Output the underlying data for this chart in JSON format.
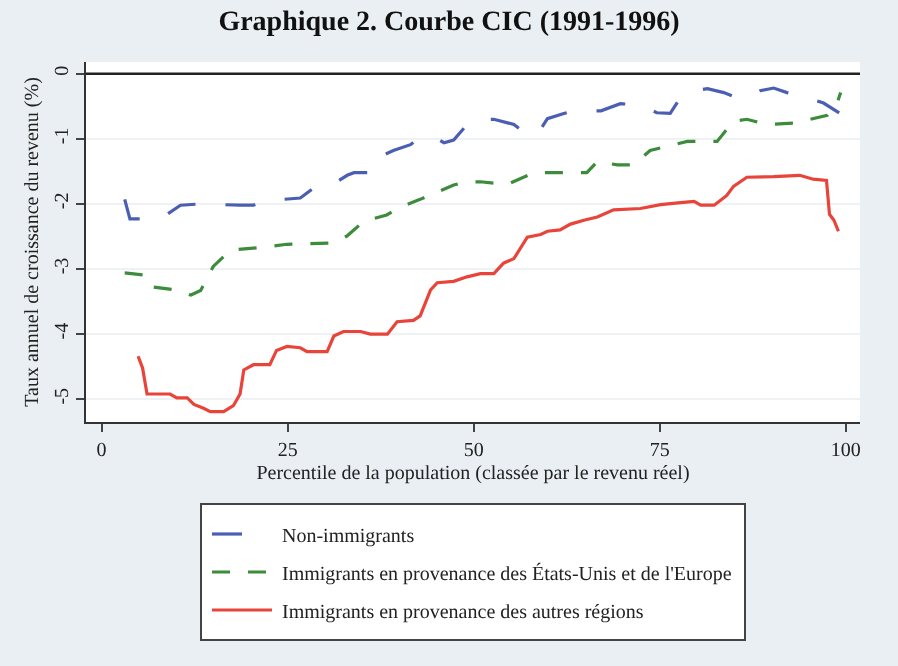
{
  "chart_data": {
    "type": "line",
    "title": "Graphique 2. Courbe CIC (1991-1996)",
    "xlabel": "Percentile de la population (classée par le revenu réel)",
    "ylabel": "Taux annuel de croissance du revenu (%)",
    "xlim": [
      -2.1,
      101.9
    ],
    "xticks": [
      0,
      25,
      50,
      75,
      100
    ],
    "ylim": [
      -5.35,
      0.18
    ],
    "yticks": [
      -5,
      -4,
      -3,
      -2,
      -1,
      0
    ],
    "grid": "y",
    "legend": "bottom",
    "marker": "none",
    "ref_lines": [
      {
        "axis": "y",
        "value": 0,
        "color": "#222222",
        "line_style": "solid"
      }
    ],
    "series": [
      {
        "name": "Non-immigrants",
        "color": "#4a5fb3",
        "line_style": "dashed",
        "x": [
          3.1,
          3.8,
          7.9,
          10.6,
          13.3,
          18.6,
          20.4,
          22.2,
          26.7,
          29,
          31.2,
          33,
          33.9,
          36.6,
          37.5,
          39.2,
          41.5,
          42.8,
          44.6,
          46,
          47.3,
          49.1,
          50,
          52.7,
          55.4,
          57.2,
          58.5,
          59.9,
          62.1,
          63.5,
          67.1,
          69.7,
          72.4,
          74.6,
          76.4,
          77.8,
          79.6,
          81.4,
          83.6,
          85.4,
          87.2,
          88.5,
          90.3,
          92.1,
          94.8,
          97,
          99.1
        ],
        "values": [
          -1.93,
          -2.23,
          -2.23,
          -2.02,
          -2.0,
          -2.02,
          -2.02,
          -1.95,
          -1.91,
          -1.71,
          -1.69,
          -1.56,
          -1.52,
          -1.52,
          -1.27,
          -1.18,
          -1.09,
          -0.97,
          -0.97,
          -1.06,
          -1.02,
          -0.78,
          -0.71,
          -0.7,
          -0.78,
          -0.94,
          -0.94,
          -0.69,
          -0.61,
          -0.57,
          -0.57,
          -0.46,
          -0.48,
          -0.6,
          -0.61,
          -0.36,
          -0.26,
          -0.23,
          -0.29,
          -0.37,
          -0.36,
          -0.26,
          -0.22,
          -0.29,
          -0.37,
          -0.45,
          -0.6
        ]
      },
      {
        "name": "Immigrants en provenance des États-Unis et de l'Europe",
        "color": "#3c8c3c",
        "line_style": "dotted",
        "x": [
          3.1,
          5.6,
          6.5,
          9.8,
          12,
          13.3,
          15,
          17.3,
          21.3,
          24.9,
          31.1,
          33,
          35.2,
          38.3,
          40.1,
          42.8,
          45.5,
          47.3,
          49.1,
          50.9,
          54.5,
          58.1,
          63.4,
          65.2,
          66.6,
          69.3,
          71.5,
          73.7,
          76.9,
          78.7,
          82.7,
          84.9,
          86.7,
          89.4,
          92.9,
          97.5,
          98.8,
          99.3
        ],
        "values": [
          -3.06,
          -3.09,
          -3.27,
          -3.32,
          -3.4,
          -3.33,
          -2.96,
          -2.71,
          -2.67,
          -2.62,
          -2.6,
          -2.49,
          -2.27,
          -2.17,
          -2.05,
          -1.93,
          -1.8,
          -1.71,
          -1.66,
          -1.66,
          -1.7,
          -1.52,
          -1.52,
          -1.52,
          -1.35,
          -1.4,
          -1.4,
          -1.18,
          -1.09,
          -1.04,
          -1.04,
          -0.73,
          -0.7,
          -0.78,
          -0.76,
          -0.64,
          -0.46,
          -0.29
        ]
      },
      {
        "name": "Immigrants en provenance des autres régions",
        "color": "#e8443a",
        "line_style": "solid",
        "x": [
          4.9,
          5.5,
          6.1,
          9.2,
          10.1,
          11.5,
          12.4,
          13.7,
          14.6,
          16.4,
          17.7,
          18.6,
          19.1,
          20.4,
          22.6,
          23.5,
          24.9,
          26.7,
          27.6,
          30.3,
          31.2,
          32.5,
          34.8,
          36.1,
          38.4,
          39.7,
          41.9,
          42.8,
          44.2,
          45.1,
          47.3,
          49.1,
          50.9,
          52.7,
          54,
          55.4,
          57.2,
          59,
          59.9,
          61.6,
          63,
          64.8,
          66.6,
          68.8,
          72.4,
          75.1,
          77.8,
          79.6,
          80.5,
          82.3,
          84,
          84.9,
          86.7,
          90.3,
          93.8,
          95.6,
          97.4,
          97.8,
          98.4,
          99
        ],
        "values": [
          -4.34,
          -4.52,
          -4.92,
          -4.92,
          -4.98,
          -4.98,
          -5.08,
          -5.14,
          -5.19,
          -5.19,
          -5.1,
          -4.92,
          -4.55,
          -4.47,
          -4.47,
          -4.25,
          -4.19,
          -4.21,
          -4.27,
          -4.27,
          -4.03,
          -3.96,
          -3.96,
          -4.0,
          -4.0,
          -3.81,
          -3.79,
          -3.72,
          -3.32,
          -3.21,
          -3.19,
          -3.12,
          -3.07,
          -3.07,
          -2.91,
          -2.84,
          -2.51,
          -2.47,
          -2.42,
          -2.4,
          -2.31,
          -2.25,
          -2.2,
          -2.09,
          -2.07,
          -2.01,
          -1.98,
          -1.96,
          -2.02,
          -2.02,
          -1.87,
          -1.73,
          -1.59,
          -1.58,
          -1.56,
          -1.62,
          -1.64,
          -2.16,
          -2.25,
          -2.42
        ]
      }
    ]
  }
}
